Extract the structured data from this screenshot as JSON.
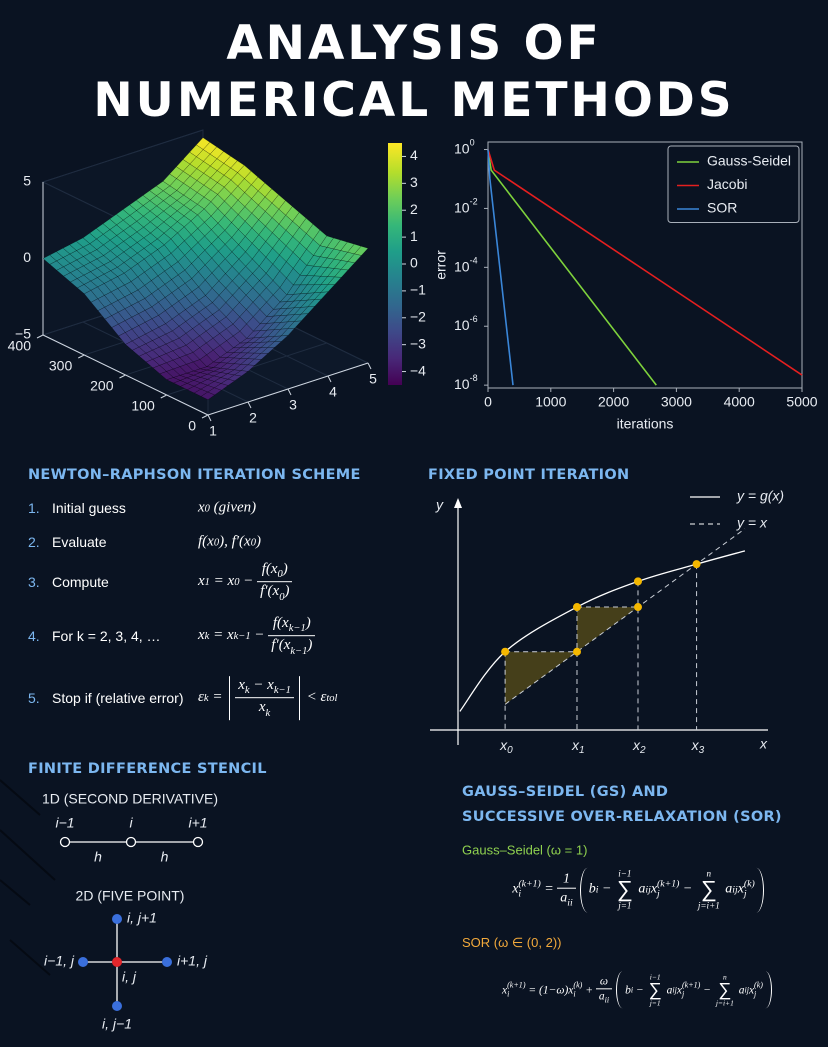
{
  "title": [
    "ANALYSIS OF",
    "NUMERICAL METHODS"
  ],
  "chart_data": [
    {
      "type": "surface",
      "x": [
        1,
        2,
        3,
        4,
        5
      ],
      "y": [
        0,
        100,
        200,
        300,
        400
      ],
      "z": [
        [
          -4,
          -4,
          -3,
          -1,
          0
        ],
        [
          -3,
          -4,
          -2.5,
          -0.5,
          0.5
        ],
        [
          -1.5,
          -3,
          -1.5,
          0.5,
          1.5
        ],
        [
          0.5,
          -1,
          0.5,
          2,
          2.5
        ],
        [
          2.5,
          2,
          3,
          4,
          4.5
        ]
      ],
      "xlim": [
        1,
        5
      ],
      "ylim": [
        0,
        400
      ],
      "zlim": [
        -5,
        5
      ],
      "xticks": [
        1,
        2,
        3,
        4,
        5
      ],
      "yticks": [
        0,
        100,
        200,
        300,
        400
      ],
      "zticks": [
        {
          "value": -5,
          "label": "−5"
        },
        0,
        5
      ],
      "colormap": "viridis",
      "clim": [
        -4.5,
        4.5
      ],
      "colorbar_ticks": [
        {
          "value": -4,
          "label": "−4"
        },
        {
          "value": -3,
          "label": "−3"
        },
        {
          "value": -2,
          "label": "−2"
        },
        {
          "value": -1,
          "label": "−1"
        },
        0,
        1,
        2,
        3,
        4
      ]
    },
    {
      "type": "line",
      "xlabel": "iterations",
      "ylabel": "error",
      "log_y": true,
      "xlim": [
        0,
        5000
      ],
      "ylim": [
        1.8,
        8e-09
      ],
      "xticks": [
        0,
        1000,
        2000,
        3000,
        4000,
        5000
      ],
      "yticks": [
        {
          "value": 1,
          "label": "10",
          "exponent": "0"
        },
        {
          "value": 0.01,
          "label": "10",
          "exponent": "-2"
        },
        {
          "value": 0.0001,
          "label": "10",
          "exponent": "-4"
        },
        {
          "value": 1e-06,
          "label": "10",
          "exponent": "-6"
        },
        {
          "value": 1e-08,
          "label": "10",
          "exponent": "-8"
        }
      ],
      "legend": "upper right",
      "series": [
        {
          "name": "Gauss-Seidel",
          "color": "#7ed23c",
          "x": [
            0,
            50,
            2680
          ],
          "values": [
            1,
            0.2,
            1e-08
          ]
        },
        {
          "name": "Jacobi",
          "color": "#e41f1f",
          "x": [
            0,
            100,
            5000
          ],
          "values": [
            1,
            0.2,
            2.2e-08
          ]
        },
        {
          "name": "SOR",
          "color": "#3a86d8",
          "x": [
            0,
            30,
            398
          ],
          "values": [
            1,
            0.1,
            1e-08
          ]
        }
      ]
    },
    {
      "type": "fixed_point",
      "title": "FIXED POINT ITERATION",
      "xlabel": "x",
      "ylabel": "y",
      "xlim": [
        0,
        5
      ],
      "ylim": [
        0.2,
        5.4
      ],
      "curve": {
        "name": "y = g(x)",
        "x": [
          0.03,
          0.78,
          1.97,
          2.98,
          3.95,
          4.75
        ],
        "y": [
          0.62,
          1.97,
          2.98,
          3.56,
          3.95,
          4.25
        ]
      },
      "diagonal": {
        "name": "y = x"
      },
      "iterates": {
        "labels": [
          {
            "base": "x",
            "sub": "0"
          },
          {
            "base": "x",
            "sub": "1"
          },
          {
            "base": "x",
            "sub": "2"
          },
          {
            "base": "x",
            "sub": "3"
          }
        ],
        "x": [
          0.78,
          1.97,
          2.98,
          3.95
        ],
        "g": [
          1.97,
          2.98,
          3.56,
          3.95
        ]
      },
      "point_color": "#f5b800",
      "shade_color": "#4b4519"
    }
  ],
  "newton": {
    "title": "NEWTON–RAPHSON ITERATION SCHEME",
    "steps": [
      {
        "number": "1.",
        "label": "Initial guess",
        "formula": [
          "x",
          {
            "sub": "0"
          },
          " (given)"
        ]
      },
      {
        "number": "2.",
        "label": "Evaluate",
        "formula": [
          "f(x",
          {
            "sub": "0"
          },
          "), f′(x",
          {
            "sub": "0"
          },
          ")"
        ]
      },
      {
        "number": "3.",
        "label": "Compute",
        "formula": [
          "x",
          {
            "sub": "1"
          },
          " = x",
          {
            "sub": "0"
          },
          " − ",
          {
            "frac": [
              [
                "f(x",
                {
                  "sub": "0"
                },
                ")"
              ],
              [
                "f′(x",
                {
                  "sub": "0"
                },
                ")"
              ]
            ]
          }
        ]
      },
      {
        "number": "4.",
        "label": "For k = 2, 3, 4, …",
        "formula": [
          "x",
          {
            "sub": "k"
          },
          " = x",
          {
            "sub": "k−1"
          },
          " − ",
          {
            "frac": [
              [
                "f(x",
                {
                  "sub": "k−1"
                },
                ")"
              ],
              [
                "f′(x",
                {
                  "sub": "k−1"
                },
                ")"
              ]
            ]
          }
        ]
      },
      {
        "number": "5.",
        "label": "Stop if (relative error)",
        "formula": [
          "ε",
          {
            "sub": "k"
          },
          " = ",
          {
            "abs": {
              "frac": [
                [
                  "x",
                  {
                    "sub": "k"
                  },
                  " − x",
                  {
                    "sub": "k−1"
                  }
                ],
                [
                  "x",
                  {
                    "sub": "k"
                  }
                ]
              ]
            }
          },
          " < ε",
          {
            "sub": "tol"
          }
        ]
      }
    ]
  },
  "stencil": {
    "title": "FINITE DIFFERENCE STENCIL",
    "one_d": {
      "title": "1D (SECOND DERIVATIVE)",
      "nodes": [
        "i−1",
        "i",
        "i+1"
      ],
      "spacing": [
        "h",
        "h"
      ]
    },
    "two_d": {
      "title": "2D (FIVE POINT)",
      "nodes": [
        "i, j+1",
        "i−1, j",
        "i, j",
        "i+1, j",
        "i, j−1"
      ]
    }
  },
  "gauss_seidel": {
    "title": [
      "GAUSS–SEIDEL (GS) AND",
      "SUCCESSIVE OVER-RELAXATION (SOR)"
    ],
    "gs": {
      "label": "Gauss–Seidel (ω = 1)",
      "color": "#8fd14f",
      "formula": [
        "x",
        {
          "sub": "i",
          "sup": "(k+1)"
        },
        " = ",
        {
          "frac": [
            "1",
            [
              "a",
              {
                "sub": "ii"
              }
            ]
          ]
        },
        {
          "paren": [
            "b",
            {
              "sub": "i"
            },
            " − ",
            {
              "sum": "∑",
              "over": "i−1",
              "under": "j=1"
            },
            " a",
            {
              "sub": "ij"
            },
            "x",
            {
              "sub": "j",
              "sup": "(k+1)"
            },
            " − ",
            {
              "sum": "∑",
              "over": "n",
              "under": "j=i+1"
            },
            " a",
            {
              "sub": "ij"
            },
            "x",
            {
              "sub": "j",
              "sup": "(k)"
            }
          ]
        }
      ]
    },
    "sor": {
      "label": "SOR (ω ∈ (0, 2))",
      "color": "#f2a93b",
      "formula": [
        "x",
        {
          "sub": "i",
          "sup": "(k+1)"
        },
        " = (1−ω)x",
        {
          "sub": "i",
          "sup": "(k)"
        },
        " + ",
        {
          "frac": [
            "ω",
            [
              "a",
              {
                "sub": "ii"
              }
            ]
          ]
        },
        {
          "paren": [
            "b",
            {
              "sub": "i"
            },
            " − ",
            {
              "sum": "∑",
              "over": "i−1",
              "under": "j=1"
            },
            " a",
            {
              "sub": "ij"
            },
            "x",
            {
              "sub": "j",
              "sup": "(k+1)"
            },
            " − ",
            {
              "sum": "∑",
              "over": "n",
              "under": "j=i+1"
            },
            " a",
            {
              "sub": "ij"
            },
            "x",
            {
              "sub": "j",
              "sup": "(k)"
            }
          ]
        }
      ]
    }
  }
}
